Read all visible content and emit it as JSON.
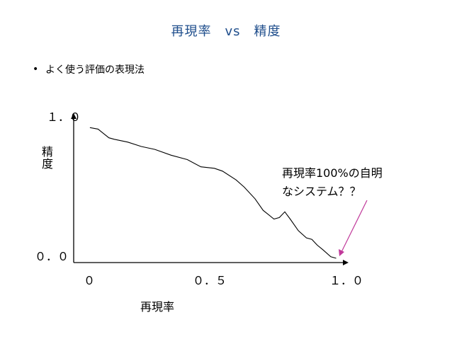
{
  "slide": {
    "title": "再現率　vs　精度",
    "bullet": "よく使う評価の表現法",
    "bullet_marker": "•",
    "annotation": "再現率100%の自明\nなシステム？？",
    "annotation_color": "#c0399a",
    "title_color": "#1f4e8c"
  },
  "chart_data": {
    "type": "line",
    "title": "",
    "xlabel": "再現率",
    "ylabel": "精度",
    "xlim": [
      0.0,
      1.0
    ],
    "ylim": [
      0.0,
      1.0
    ],
    "x_tick_labels": [
      "０",
      "０．５",
      "１．０"
    ],
    "y_tick_labels": [
      "０．０",
      "１．０"
    ],
    "series": [
      {
        "x": [
          0.06,
          0.09,
          0.11,
          0.13,
          0.15,
          0.2,
          0.25,
          0.3,
          0.36,
          0.42,
          0.47,
          0.52,
          0.55,
          0.6,
          0.63,
          0.67,
          0.7,
          0.74,
          0.76,
          0.78,
          0.8,
          0.83,
          0.86,
          0.88,
          0.9,
          0.92,
          0.95,
          0.97
        ],
        "y": [
          0.93,
          0.92,
          0.89,
          0.86,
          0.85,
          0.83,
          0.8,
          0.78,
          0.74,
          0.71,
          0.66,
          0.65,
          0.63,
          0.57,
          0.52,
          0.44,
          0.36,
          0.3,
          0.31,
          0.35,
          0.3,
          0.22,
          0.17,
          0.16,
          0.12,
          0.09,
          0.04,
          0.03
        ]
      }
    ]
  }
}
